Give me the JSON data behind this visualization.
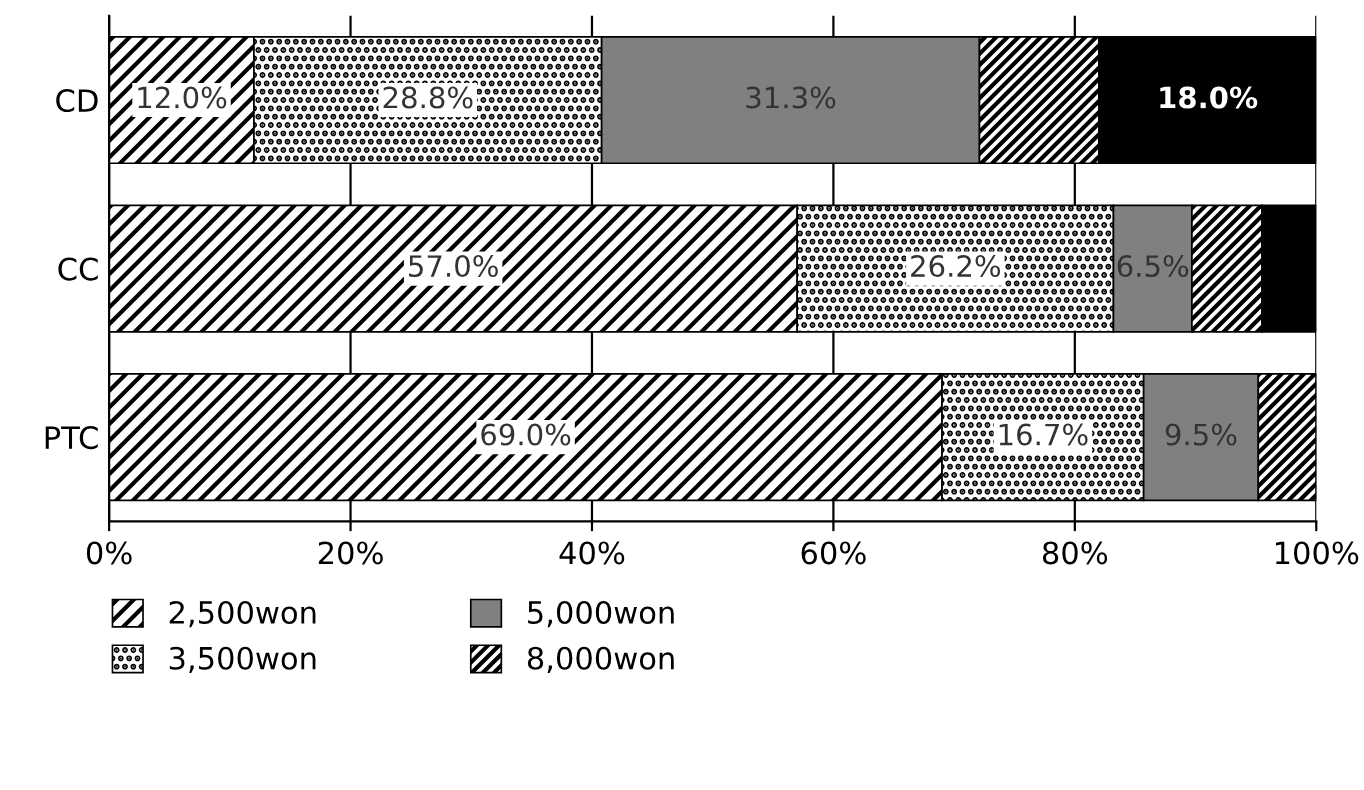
{
  "chart_data": {
    "type": "bar",
    "orientation": "horizontal",
    "stacked": true,
    "categories": [
      "CD",
      "CC",
      "PTC"
    ],
    "series": [
      {
        "name": "2,500won",
        "color": "#000000",
        "values": [
          12.0,
          57.0,
          69.0
        ],
        "value_labels": [
          "12.0%",
          "57.0%",
          "69.0%"
        ]
      },
      {
        "name": "3,500won",
        "color": "#000000",
        "values": [
          28.8,
          26.2,
          16.7
        ],
        "value_labels": [
          "28.8%",
          "26.2%",
          "16.7%"
        ]
      },
      {
        "name": "5,000won",
        "color": "#808080",
        "values": [
          31.3,
          6.5,
          9.5
        ],
        "value_labels": [
          "31.3%",
          "6.5%",
          "9.5%"
        ]
      },
      {
        "name": "8,000won",
        "color": "#000000",
        "values": [
          9.9,
          5.8,
          4.8
        ],
        "value_labels": [
          null,
          null,
          null
        ]
      },
      {
        "color": "#000000",
        "values": [
          18.0,
          4.5,
          0
        ],
        "value_labels": [
          "18.0%",
          null,
          null
        ]
      }
    ],
    "xlim": [
      0,
      100
    ],
    "xticks": [
      {
        "value": 0,
        "label": "0%"
      },
      {
        "value": 20,
        "label": "20%"
      },
      {
        "value": 40,
        "label": "40%"
      },
      {
        "value": 60,
        "label": "60%"
      },
      {
        "value": 80,
        "label": "80%"
      },
      {
        "value": 100,
        "label": "100%"
      }
    ],
    "grid": "x",
    "legend": "bottom"
  }
}
